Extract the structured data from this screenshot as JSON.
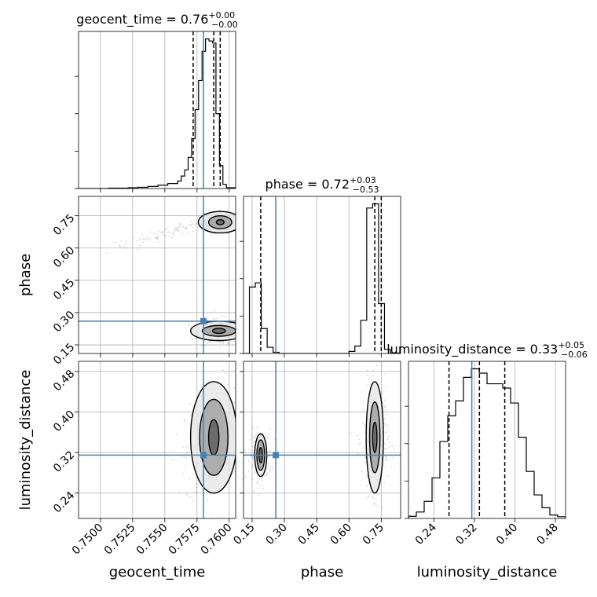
{
  "chart_data": {
    "type": "corner",
    "parameters": [
      "geocent_time",
      "phase",
      "luminosity_distance"
    ],
    "truths": {
      "geocent_time": 0.758,
      "phase": 0.26,
      "luminosity_distance": 0.315
    },
    "titles": [
      {
        "param": "geocent_time",
        "text": "geocent_time = 0.76",
        "plus": "+0.00",
        "minus": "−0.00"
      },
      {
        "param": "phase",
        "text": "phase = 0.72",
        "plus": "+0.03",
        "minus": "−0.53"
      },
      {
        "param": "luminosity_distance",
        "text": "luminosity_distance = 0.33",
        "plus": "+0.05",
        "minus": "−0.06"
      }
    ],
    "axes": {
      "geocent_time": {
        "label": "geocent_time",
        "range": [
          0.7483,
          0.7605
        ],
        "ticks": [
          "0.7500",
          "0.7525",
          "0.7550",
          "0.7575",
          "0.7600"
        ]
      },
      "phase": {
        "label": "phase",
        "range": [
          0.11,
          0.84
        ],
        "ticks": [
          "0.15",
          "0.30",
          "0.45",
          "0.60",
          "0.75"
        ]
      },
      "luminosity_distance": {
        "label": "luminosity_distance",
        "range": [
          0.19,
          0.5
        ],
        "ticks": [
          "0.24",
          "0.32",
          "0.40",
          "0.48"
        ]
      }
    },
    "histograms": {
      "geocent_time": {
        "edges": [
          0.7483,
          0.74907,
          0.74984,
          0.75061,
          0.75138,
          0.75215,
          0.75292,
          0.75369,
          0.75446,
          0.75523,
          0.756,
          0.75627,
          0.75654,
          0.75681,
          0.75708,
          0.75735,
          0.75762,
          0.75789,
          0.75816,
          0.75843,
          0.7587,
          0.75897,
          0.75924,
          0.75951,
          0.75978,
          0.7605
        ],
        "counts": [
          0,
          0,
          0,
          1,
          1,
          2,
          3,
          5,
          8,
          12,
          18,
          30,
          45,
          75,
          120,
          190,
          260,
          330,
          360,
          355,
          350,
          180,
          55,
          10,
          2
        ]
      },
      "phase": {
        "edges": [
          0.11,
          0.1375,
          0.165,
          0.1925,
          0.22,
          0.2475,
          0.275,
          0.3025,
          0.33,
          0.3575,
          0.385,
          0.6,
          0.6275,
          0.655,
          0.6825,
          0.71,
          0.7375,
          0.765,
          0.7925,
          0.84
        ],
        "counts": [
          0,
          160,
          170,
          60,
          15,
          3,
          0,
          0,
          0,
          0,
          0,
          5,
          18,
          80,
          350,
          360,
          120,
          10,
          1
        ]
      },
      "luminosity_distance": {
        "edges": [
          0.19,
          0.2055,
          0.221,
          0.2365,
          0.252,
          0.2675,
          0.283,
          0.2985,
          0.314,
          0.3295,
          0.345,
          0.3605,
          0.376,
          0.3915,
          0.407,
          0.4225,
          0.438,
          0.4535,
          0.469,
          0.4845,
          0.5
        ],
        "counts": [
          5,
          15,
          40,
          95,
          180,
          240,
          275,
          330,
          350,
          340,
          315,
          315,
          305,
          270,
          190,
          110,
          55,
          25,
          8,
          4
        ]
      }
    },
    "quantiles": {
      "geocent_time": [
        0.7572,
        0.7588,
        0.7593
      ],
      "phase": [
        0.19,
        0.72,
        0.75
      ],
      "luminosity_distance": [
        0.27,
        0.33,
        0.38
      ]
    },
    "clusters": [
      {
        "xp": "geocent_time",
        "yp": "phase",
        "cx": 0.7593,
        "cy": 0.72,
        "sx": 0.0007,
        "sy": 0.025,
        "rho": 0,
        "n": 260
      },
      {
        "xp": "geocent_time",
        "yp": "phase",
        "cx": 0.7555,
        "cy": 0.675,
        "sx": 0.0025,
        "sy": 0.04,
        "rho": 0.95,
        "n": 90
      },
      {
        "xp": "geocent_time",
        "yp": "phase",
        "cx": 0.7592,
        "cy": 0.21,
        "sx": 0.0008,
        "sy": 0.03,
        "rho": 0,
        "n": 180
      },
      {
        "xp": "geocent_time",
        "yp": "luminosity_distance",
        "cx": 0.7588,
        "cy": 0.35,
        "sx": 0.0011,
        "sy": 0.055,
        "rho": 0.35,
        "n": 380
      },
      {
        "xp": "phase",
        "yp": "luminosity_distance",
        "cx": 0.19,
        "cy": 0.315,
        "sx": 0.025,
        "sy": 0.025,
        "rho": 0,
        "n": 160
      },
      {
        "xp": "phase",
        "yp": "luminosity_distance",
        "cx": 0.72,
        "cy": 0.35,
        "sx": 0.03,
        "sy": 0.055,
        "rho": 0,
        "n": 300
      }
    ],
    "contours": [
      {
        "xp": "geocent_time",
        "yp": "phase",
        "cx": 0.7593,
        "cy": 0.72,
        "rx": [
          0.0003,
          0.0009,
          0.0017
        ],
        "ry": [
          0.012,
          0.03,
          0.05
        ]
      },
      {
        "xp": "geocent_time",
        "yp": "phase",
        "cx": 0.7592,
        "cy": 0.215,
        "rx": [
          0.0005,
          0.0013,
          0.0022
        ],
        "ry": [
          0.012,
          0.025,
          0.045
        ]
      },
      {
        "xp": "geocent_time",
        "yp": "luminosity_distance",
        "cx": 0.7588,
        "cy": 0.35,
        "rx": [
          0.0004,
          0.0011,
          0.0018
        ],
        "ry": [
          0.035,
          0.075,
          0.11
        ]
      },
      {
        "xp": "phase",
        "yp": "luminosity_distance",
        "cx": 0.19,
        "cy": 0.315,
        "rx": [
          0.008,
          0.018,
          0.028
        ],
        "ry": [
          0.015,
          0.03,
          0.042
        ]
      },
      {
        "xp": "phase",
        "yp": "luminosity_distance",
        "cx": 0.72,
        "cy": 0.35,
        "rx": [
          0.01,
          0.024,
          0.04
        ],
        "ry": [
          0.03,
          0.07,
          0.11
        ]
      }
    ],
    "grid": true
  }
}
